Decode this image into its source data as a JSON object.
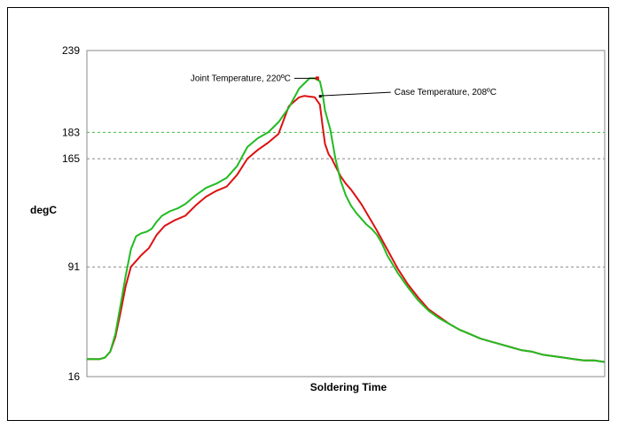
{
  "chart_data": {
    "type": "line",
    "title": "",
    "xlabel": "Soldering Time",
    "ylabel": "degC",
    "ylim": [
      16,
      239
    ],
    "xlim": [
      0,
      100
    ],
    "yticks": [
      {
        "value": 239,
        "label": "239",
        "color": "#000000"
      },
      {
        "value": 183,
        "label": "183",
        "color": "#33a02c"
      },
      {
        "value": 165,
        "label": "165",
        "color": "#000000"
      },
      {
        "value": 91,
        "label": "91",
        "color": "#000000"
      },
      {
        "value": 16,
        "label": "16",
        "color": "#000000"
      }
    ],
    "reference_lines": [
      {
        "y": 183,
        "color": "#44bb44",
        "style": "dashed"
      },
      {
        "y": 165,
        "color": "#888888",
        "style": "dashed"
      },
      {
        "y": 91,
        "color": "#888888",
        "style": "dashed"
      }
    ],
    "grid": false,
    "legend": "none",
    "series": [
      {
        "name": "Joint Temperature",
        "color": "#22bb22",
        "x": [
          0,
          2.5,
          3.5,
          4.5,
          5.5,
          6.5,
          7.5,
          8.5,
          9.5,
          10.5,
          11.5,
          12.5,
          13.5,
          14.5,
          16,
          17.5,
          19,
          21,
          23,
          25,
          27,
          29,
          31,
          33,
          35,
          37,
          39,
          41,
          43,
          44,
          45,
          45.5,
          46,
          47,
          48,
          49,
          50,
          51,
          52,
          53,
          54,
          55,
          56,
          57,
          58,
          60,
          62,
          64,
          66,
          68,
          70,
          72,
          74,
          76,
          78,
          80,
          82,
          84,
          86,
          88,
          90,
          92,
          94,
          96,
          98,
          100
        ],
        "values": [
          28,
          28,
          29,
          33,
          45,
          65,
          85,
          103,
          112,
          114,
          115,
          117,
          122,
          126,
          129,
          131,
          134,
          140,
          145,
          148,
          152,
          160,
          173,
          179,
          183,
          190,
          200,
          213,
          220,
          220,
          218,
          210,
          198,
          185,
          165,
          150,
          140,
          133,
          128,
          124,
          120,
          117,
          113,
          107,
          99,
          87,
          77,
          68,
          61,
          56,
          52,
          48,
          45,
          42,
          40,
          38,
          36,
          34,
          33,
          31,
          30,
          29,
          28,
          27,
          27,
          26
        ]
      },
      {
        "name": "Case Temperature",
        "color": "#dd1111",
        "x": [
          0,
          2.5,
          3.5,
          4.5,
          5.5,
          6.5,
          7.5,
          8.5,
          9.5,
          10.5,
          12,
          13.5,
          15,
          17,
          19,
          21,
          23,
          25,
          27,
          29,
          31,
          33,
          35,
          37,
          39,
          41,
          42,
          44,
          45,
          45.5,
          46,
          46.7,
          47.3,
          48,
          49,
          50,
          51,
          52,
          53,
          54,
          56,
          58,
          60,
          62,
          64,
          66,
          68,
          70,
          72,
          74,
          76,
          78,
          80,
          82,
          84,
          86,
          88,
          90,
          92,
          94,
          96,
          98,
          100
        ],
        "values": [
          28,
          28,
          29,
          33,
          43,
          60,
          78,
          91,
          95,
          99,
          104,
          113,
          119,
          123,
          126,
          133,
          139,
          143,
          146,
          154,
          165,
          171,
          176,
          182,
          201,
          207,
          208,
          207,
          202,
          188,
          175,
          168,
          165,
          160,
          153,
          148,
          144,
          139,
          134,
          128,
          116,
          103,
          90,
          79,
          70,
          62,
          57,
          52,
          48,
          45,
          42,
          40,
          38,
          36,
          34,
          33,
          31,
          30,
          29,
          28,
          27,
          27,
          26
        ]
      }
    ],
    "annotations": [
      {
        "text": "Joint Temperature, 220ºC",
        "x": 44.5,
        "y": 220
      },
      {
        "text": "Case Temperature, 208ºC",
        "x": 46.7,
        "y": 208
      }
    ]
  }
}
